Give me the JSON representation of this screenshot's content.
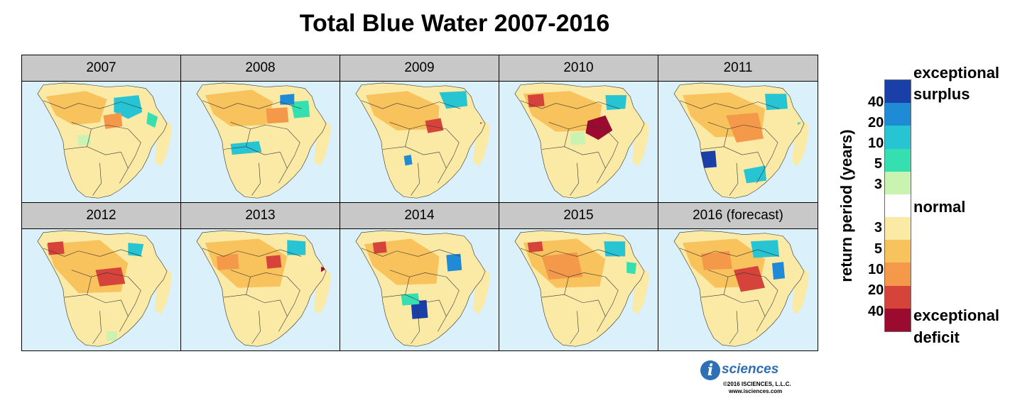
{
  "title": "Total Blue Water 2007-2016",
  "panels": [
    {
      "label": "2007"
    },
    {
      "label": "2008"
    },
    {
      "label": "2009"
    },
    {
      "label": "2010"
    },
    {
      "label": "2011"
    },
    {
      "label": "2012"
    },
    {
      "label": "2013"
    },
    {
      "label": "2014"
    },
    {
      "label": "2015"
    },
    {
      "label": "2016 (forecast)"
    }
  ],
  "legend": {
    "axis_label": "return period (years)",
    "surplus_ticks": [
      "40",
      "20",
      "10",
      "5",
      "3"
    ],
    "deficit_ticks": [
      "3",
      "5",
      "10",
      "20",
      "40"
    ],
    "top_label_1": "exceptional",
    "top_label_2": "surplus",
    "normal_label": "normal",
    "bottom_label_1": "exceptional",
    "bottom_label_2": "deficit",
    "colors": [
      "#1a3fa8",
      "#1f8ad6",
      "#27c4d4",
      "#36dfb0",
      "#c9f3b0",
      "#ffffff",
      "#fbe9a6",
      "#f8c25c",
      "#f4994a",
      "#d5433a",
      "#9b0b2f"
    ]
  },
  "logo": {
    "mark": "i",
    "name": "sciences",
    "copyright": "©2016  ISCIENCES, L.L.C.",
    "url": "www.isciences.com"
  }
}
